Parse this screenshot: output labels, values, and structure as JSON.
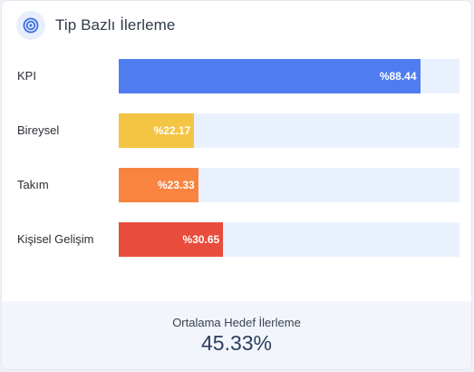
{
  "header": {
    "title": "Tip Bazlı İlerleme",
    "icon": "target-icon"
  },
  "progress_rows": [
    {
      "label": "KPI",
      "percent": 88.44,
      "value_label": "%88.44",
      "color": "#4f7df0"
    },
    {
      "label": "Bireysel",
      "percent": 22.17,
      "value_label": "%22.17",
      "color": "#f4c443"
    },
    {
      "label": "Takım",
      "percent": 23.33,
      "value_label": "%23.33",
      "color": "#f8843f"
    },
    {
      "label": "Kişisel Gelişim",
      "percent": 30.65,
      "value_label": "%30.65",
      "color": "#e84c3d"
    }
  ],
  "track_color": "#eaf1fe",
  "summary": {
    "label": "Ortalama Hedef İlerleme",
    "value": "45.33%"
  }
}
